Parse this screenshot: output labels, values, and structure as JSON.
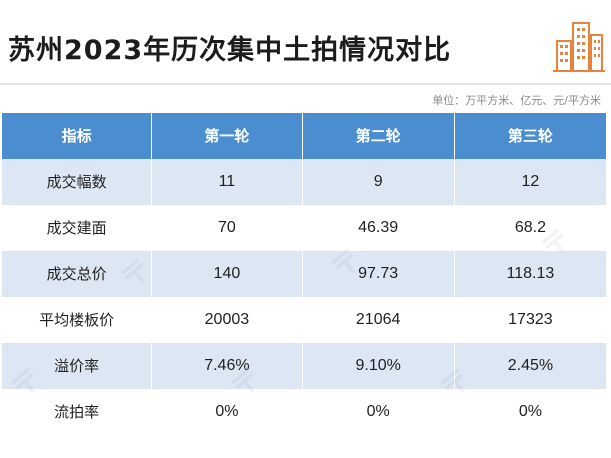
{
  "title": "苏州2023年历次集中土拍情况对比",
  "unit_note": "单位：万平方米、亿元、元/平方米",
  "logo_icon": "city-buildings-icon",
  "colors": {
    "header_bg": "#4a8ed0",
    "row_shade": "#dde6f3",
    "logo_accent": "#e8823c"
  },
  "table": {
    "headers": [
      "指标",
      "第一轮",
      "第二轮",
      "第三轮"
    ],
    "rows": [
      {
        "label": "成交幅数",
        "r1": "11",
        "r2": "9",
        "r3": "12"
      },
      {
        "label": "成交建面",
        "r1": "70",
        "r2": "46.39",
        "r3": "68.2"
      },
      {
        "label": "成交总价",
        "r1": "140",
        "r2": "97.73",
        "r3": "118.13"
      },
      {
        "label": "平均楼板价",
        "r1": "20003",
        "r2": "21064",
        "r3": "17323"
      },
      {
        "label": "溢价率",
        "r1": "7.46%",
        "r2": "9.10%",
        "r3": "2.45%"
      },
      {
        "label": "流拍率",
        "r1": "0%",
        "r2": "0%",
        "r3": "0%"
      }
    ]
  }
}
